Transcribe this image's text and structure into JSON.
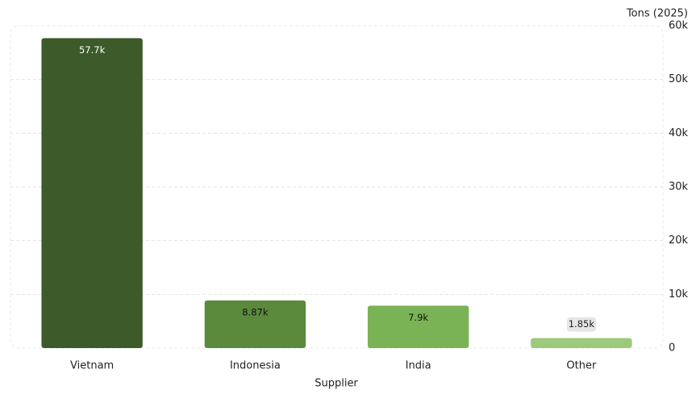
{
  "chart_data": {
    "type": "bar",
    "y_axis_title": "Tons (2025)",
    "x_axis_title": "Supplier",
    "categories": [
      "Vietnam",
      "Indonesia",
      "India",
      "Other"
    ],
    "values": [
      57700,
      8870,
      7900,
      1850
    ],
    "value_labels": [
      "57.7k",
      "8.87k",
      "7.9k",
      "1.85k"
    ],
    "colors": [
      "#3d5a2b",
      "#5b8a3d",
      "#7ab356",
      "#9cc97a"
    ],
    "ylim": [
      0,
      60000
    ],
    "yticks": [
      0,
      {
        "value": 10000,
        "label": "10k"
      },
      {
        "value": 20000,
        "label": "20k"
      },
      {
        "value": 30000,
        "label": "30k"
      },
      {
        "value": 40000,
        "label": "40k"
      },
      {
        "value": 50000,
        "label": "50k"
      },
      {
        "value": 60000,
        "label": "60k"
      }
    ],
    "grid": true
  }
}
